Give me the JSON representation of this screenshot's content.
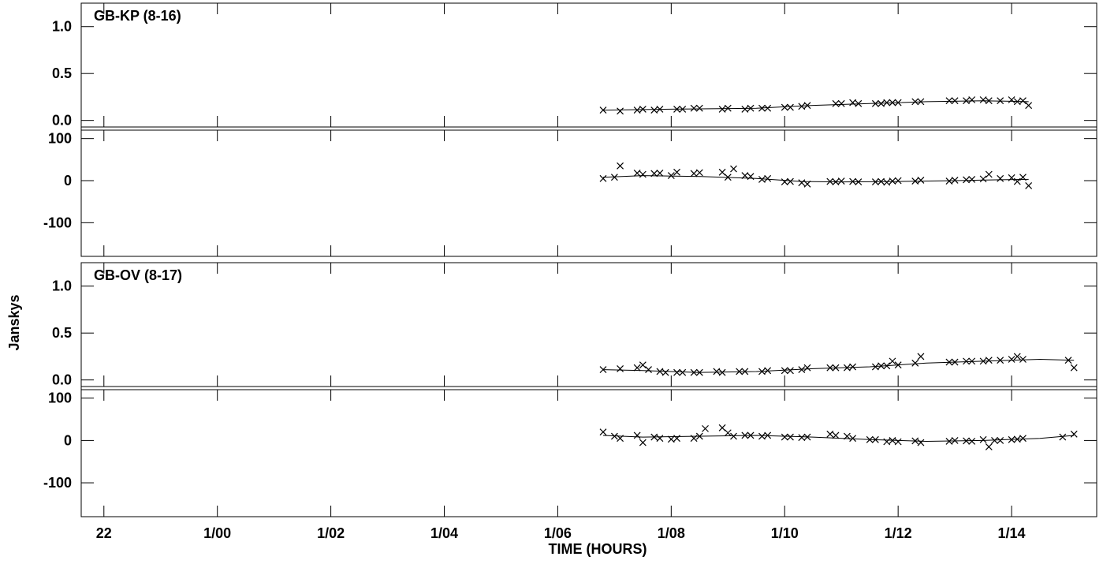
{
  "chart_data": {
    "type": "scatter",
    "ylabel": "Janskys",
    "xlabel": "TIME (HOURS)",
    "x_range_hours": [
      21.6,
      39.5
    ],
    "x_ticks": [
      {
        "h": 22,
        "label": "22"
      },
      {
        "h": 24,
        "label": "1/00"
      },
      {
        "h": 26,
        "label": "1/02"
      },
      {
        "h": 28,
        "label": "1/04"
      },
      {
        "h": 30,
        "label": "1/06"
      },
      {
        "h": 32,
        "label": "1/08"
      },
      {
        "h": 34,
        "label": "1/10"
      },
      {
        "h": 36,
        "label": "1/12"
      },
      {
        "h": 38,
        "label": "1/14"
      }
    ],
    "amp_axis": {
      "ylim": [
        -0.07,
        1.25
      ],
      "ticks": [
        {
          "v": 0,
          "label": "0.0"
        },
        {
          "v": 0.5,
          "label": "0.5"
        },
        {
          "v": 1.0,
          "label": "1.0"
        }
      ]
    },
    "phase_axis": {
      "ylim": [
        -180,
        120
      ],
      "ticks": [
        {
          "v": -100,
          "label": "-100"
        },
        {
          "v": 0,
          "label": "0"
        },
        {
          "v": 100,
          "label": "100"
        }
      ]
    },
    "panels": [
      {
        "title": "GB-KP (8-16)",
        "amp_points": [
          [
            30.8,
            0.11
          ],
          [
            31.1,
            0.1
          ],
          [
            31.4,
            0.11
          ],
          [
            31.5,
            0.12
          ],
          [
            31.7,
            0.11
          ],
          [
            31.8,
            0.12
          ],
          [
            32.1,
            0.12
          ],
          [
            32.2,
            0.12
          ],
          [
            32.4,
            0.13
          ],
          [
            32.5,
            0.13
          ],
          [
            32.9,
            0.12
          ],
          [
            33.0,
            0.13
          ],
          [
            33.3,
            0.12
          ],
          [
            33.4,
            0.13
          ],
          [
            33.6,
            0.13
          ],
          [
            33.7,
            0.13
          ],
          [
            34.0,
            0.14
          ],
          [
            34.1,
            0.14
          ],
          [
            34.3,
            0.15
          ],
          [
            34.4,
            0.16
          ],
          [
            34.9,
            0.18
          ],
          [
            35.0,
            0.18
          ],
          [
            35.2,
            0.19
          ],
          [
            35.3,
            0.18
          ],
          [
            35.6,
            0.18
          ],
          [
            35.7,
            0.18
          ],
          [
            35.8,
            0.19
          ],
          [
            35.9,
            0.19
          ],
          [
            36.0,
            0.19
          ],
          [
            36.3,
            0.2
          ],
          [
            36.4,
            0.2
          ],
          [
            36.9,
            0.21
          ],
          [
            37.0,
            0.21
          ],
          [
            37.2,
            0.21
          ],
          [
            37.3,
            0.22
          ],
          [
            37.5,
            0.22
          ],
          [
            37.6,
            0.21
          ],
          [
            37.8,
            0.21
          ],
          [
            38.0,
            0.22
          ],
          [
            38.1,
            0.2
          ],
          [
            38.2,
            0.21
          ],
          [
            38.3,
            0.16
          ]
        ],
        "amp_model": [
          [
            30.8,
            0.11
          ],
          [
            32.0,
            0.12
          ],
          [
            33.5,
            0.13
          ],
          [
            34.5,
            0.16
          ],
          [
            35.5,
            0.18
          ],
          [
            36.5,
            0.2
          ],
          [
            37.5,
            0.21
          ],
          [
            38.3,
            0.2
          ]
        ],
        "phase_points": [
          [
            30.8,
            5
          ],
          [
            31.0,
            8
          ],
          [
            31.1,
            35
          ],
          [
            31.4,
            18
          ],
          [
            31.5,
            15
          ],
          [
            31.7,
            17
          ],
          [
            31.8,
            18
          ],
          [
            32.0,
            12
          ],
          [
            32.1,
            20
          ],
          [
            32.4,
            17
          ],
          [
            32.5,
            19
          ],
          [
            32.9,
            20
          ],
          [
            33.0,
            8
          ],
          [
            33.1,
            28
          ],
          [
            33.3,
            12
          ],
          [
            33.4,
            10
          ],
          [
            33.6,
            3
          ],
          [
            33.7,
            5
          ],
          [
            34.0,
            -3
          ],
          [
            34.1,
            -2
          ],
          [
            34.3,
            -5
          ],
          [
            34.4,
            -8
          ],
          [
            34.8,
            -2
          ],
          [
            34.9,
            -3
          ],
          [
            35.0,
            -1
          ],
          [
            35.2,
            -2
          ],
          [
            35.3,
            -3
          ],
          [
            35.6,
            -3
          ],
          [
            35.7,
            -2
          ],
          [
            35.8,
            -4
          ],
          [
            35.9,
            -1
          ],
          [
            36.0,
            0
          ],
          [
            36.3,
            -1
          ],
          [
            36.4,
            1
          ],
          [
            36.9,
            -1
          ],
          [
            37.0,
            1
          ],
          [
            37.2,
            2
          ],
          [
            37.3,
            3
          ],
          [
            37.5,
            4
          ],
          [
            37.6,
            15
          ],
          [
            37.8,
            5
          ],
          [
            38.0,
            7
          ],
          [
            38.1,
            -2
          ],
          [
            38.2,
            8
          ],
          [
            38.3,
            -12
          ]
        ],
        "phase_model": [
          [
            30.8,
            8
          ],
          [
            31.5,
            12
          ],
          [
            32.5,
            10
          ],
          [
            33.5,
            5
          ],
          [
            34.3,
            -2
          ],
          [
            35.0,
            -3
          ],
          [
            36.0,
            -2
          ],
          [
            37.0,
            0
          ],
          [
            37.8,
            2
          ],
          [
            38.3,
            3
          ]
        ]
      },
      {
        "title": "GB-OV (8-17)",
        "amp_points": [
          [
            30.8,
            0.11
          ],
          [
            31.1,
            0.12
          ],
          [
            31.4,
            0.13
          ],
          [
            31.5,
            0.16
          ],
          [
            31.6,
            0.11
          ],
          [
            31.8,
            0.09
          ],
          [
            31.9,
            0.08
          ],
          [
            32.1,
            0.08
          ],
          [
            32.2,
            0.08
          ],
          [
            32.4,
            0.08
          ],
          [
            32.5,
            0.08
          ],
          [
            32.8,
            0.09
          ],
          [
            32.9,
            0.08
          ],
          [
            33.2,
            0.09
          ],
          [
            33.3,
            0.09
          ],
          [
            33.6,
            0.09
          ],
          [
            33.7,
            0.1
          ],
          [
            34.0,
            0.1
          ],
          [
            34.1,
            0.1
          ],
          [
            34.3,
            0.11
          ],
          [
            34.4,
            0.13
          ],
          [
            34.8,
            0.13
          ],
          [
            34.9,
            0.13
          ],
          [
            35.1,
            0.13
          ],
          [
            35.2,
            0.14
          ],
          [
            35.6,
            0.14
          ],
          [
            35.7,
            0.15
          ],
          [
            35.8,
            0.15
          ],
          [
            35.9,
            0.2
          ],
          [
            36.0,
            0.16
          ],
          [
            36.3,
            0.18
          ],
          [
            36.4,
            0.25
          ],
          [
            36.9,
            0.19
          ],
          [
            37.0,
            0.19
          ],
          [
            37.2,
            0.2
          ],
          [
            37.3,
            0.2
          ],
          [
            37.5,
            0.2
          ],
          [
            37.6,
            0.21
          ],
          [
            37.8,
            0.21
          ],
          [
            38.0,
            0.22
          ],
          [
            38.1,
            0.25
          ],
          [
            38.2,
            0.22
          ],
          [
            39.0,
            0.21
          ],
          [
            39.1,
            0.13
          ]
        ],
        "amp_model": [
          [
            30.8,
            0.11
          ],
          [
            31.5,
            0.1
          ],
          [
            32.5,
            0.08
          ],
          [
            33.5,
            0.09
          ],
          [
            34.5,
            0.12
          ],
          [
            35.5,
            0.14
          ],
          [
            36.5,
            0.18
          ],
          [
            37.5,
            0.2
          ],
          [
            38.5,
            0.22
          ],
          [
            39.1,
            0.21
          ]
        ],
        "phase_points": [
          [
            30.8,
            20
          ],
          [
            31.0,
            10
          ],
          [
            31.1,
            5
          ],
          [
            31.4,
            12
          ],
          [
            31.5,
            -5
          ],
          [
            31.7,
            8
          ],
          [
            31.8,
            5
          ],
          [
            32.0,
            3
          ],
          [
            32.1,
            5
          ],
          [
            32.4,
            5
          ],
          [
            32.5,
            10
          ],
          [
            32.6,
            28
          ],
          [
            32.9,
            30
          ],
          [
            33.0,
            18
          ],
          [
            33.1,
            10
          ],
          [
            33.3,
            12
          ],
          [
            33.4,
            12
          ],
          [
            33.6,
            10
          ],
          [
            33.7,
            12
          ],
          [
            34.0,
            8
          ],
          [
            34.1,
            8
          ],
          [
            34.3,
            7
          ],
          [
            34.4,
            8
          ],
          [
            34.8,
            15
          ],
          [
            34.9,
            12
          ],
          [
            35.1,
            10
          ],
          [
            35.2,
            5
          ],
          [
            35.5,
            2
          ],
          [
            35.6,
            2
          ],
          [
            35.8,
            -3
          ],
          [
            35.9,
            0
          ],
          [
            36.0,
            -3
          ],
          [
            36.3,
            -1
          ],
          [
            36.4,
            -5
          ],
          [
            36.9,
            -2
          ],
          [
            37.0,
            0
          ],
          [
            37.2,
            -1
          ],
          [
            37.3,
            -2
          ],
          [
            37.5,
            2
          ],
          [
            37.6,
            -15
          ],
          [
            37.7,
            0
          ],
          [
            37.8,
            0
          ],
          [
            38.0,
            2
          ],
          [
            38.1,
            3
          ],
          [
            38.2,
            5
          ],
          [
            38.9,
            8
          ],
          [
            39.1,
            15
          ]
        ],
        "phase_model": [
          [
            30.8,
            12
          ],
          [
            31.5,
            8
          ],
          [
            32.5,
            10
          ],
          [
            33.5,
            12
          ],
          [
            34.5,
            8
          ],
          [
            35.5,
            2
          ],
          [
            36.5,
            -2
          ],
          [
            37.5,
            0
          ],
          [
            38.5,
            5
          ],
          [
            39.1,
            12
          ]
        ]
      }
    ]
  }
}
